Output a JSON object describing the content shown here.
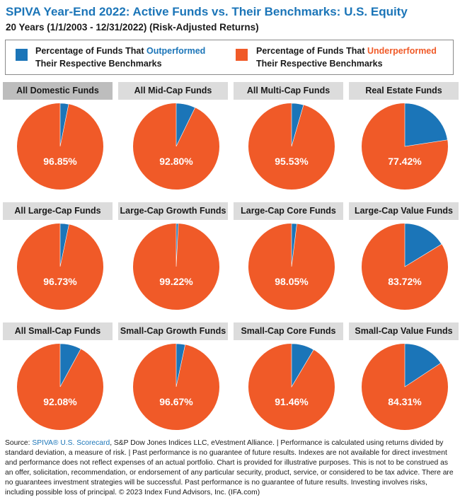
{
  "header": {
    "title": "SPIVA Year-End 2022: Active Funds vs. Their Benchmarks: U.S. Equity",
    "subtitle": "20 Years (1/1/2003 - 12/31/2022) (Risk-Adjusted Returns)"
  },
  "legend": {
    "outperformed_prefix": "Percentage of Funds That ",
    "outperformed_highlight": "Outperformed",
    "outperformed_suffix": "Their Respective Benchmarks",
    "underperformed_prefix": "Percentage of Funds That ",
    "underperformed_highlight": "Underperformed",
    "underperformed_suffix": "Their Respective Benchmarks"
  },
  "colors": {
    "outperformed": "#1b75b8",
    "underperformed": "#f05a28",
    "header_bg": "#dcdcdc",
    "header_selected_bg": "#bdbdbd"
  },
  "chart_data": [
    {
      "type": "pie",
      "title": "All Domestic Funds",
      "slices": [
        {
          "name": "Outperformed",
          "value": 3.15
        },
        {
          "name": "Underperformed",
          "value": 96.85
        }
      ],
      "label": "96.85%"
    },
    {
      "type": "pie",
      "title": "All Mid-Cap Funds",
      "slices": [
        {
          "name": "Outperformed",
          "value": 7.2
        },
        {
          "name": "Underperformed",
          "value": 92.8
        }
      ],
      "label": "92.80%"
    },
    {
      "type": "pie",
      "title": "All Multi-Cap Funds",
      "slices": [
        {
          "name": "Outperformed",
          "value": 4.47
        },
        {
          "name": "Underperformed",
          "value": 95.53
        }
      ],
      "label": "95.53%"
    },
    {
      "type": "pie",
      "title": "Real Estate Funds",
      "slices": [
        {
          "name": "Outperformed",
          "value": 22.58
        },
        {
          "name": "Underperformed",
          "value": 77.42
        }
      ],
      "label": "77.42%"
    },
    {
      "type": "pie",
      "title": "All Large-Cap Funds",
      "slices": [
        {
          "name": "Outperformed",
          "value": 3.27
        },
        {
          "name": "Underperformed",
          "value": 96.73
        }
      ],
      "label": "96.73%"
    },
    {
      "type": "pie",
      "title": "Large-Cap Growth Funds",
      "slices": [
        {
          "name": "Outperformed",
          "value": 0.78
        },
        {
          "name": "Underperformed",
          "value": 99.22
        }
      ],
      "label": "99.22%"
    },
    {
      "type": "pie",
      "title": "Large-Cap Core Funds",
      "slices": [
        {
          "name": "Outperformed",
          "value": 1.95
        },
        {
          "name": "Underperformed",
          "value": 98.05
        }
      ],
      "label": "98.05%"
    },
    {
      "type": "pie",
      "title": "Large-Cap Value Funds",
      "slices": [
        {
          "name": "Outperformed",
          "value": 16.28
        },
        {
          "name": "Underperformed",
          "value": 83.72
        }
      ],
      "label": "83.72%"
    },
    {
      "type": "pie",
      "title": "All Small-Cap Funds",
      "slices": [
        {
          "name": "Outperformed",
          "value": 7.92
        },
        {
          "name": "Underperformed",
          "value": 92.08
        }
      ],
      "label": "92.08%"
    },
    {
      "type": "pie",
      "title": "Small-Cap Growth Funds",
      "slices": [
        {
          "name": "Outperformed",
          "value": 3.33
        },
        {
          "name": "Underperformed",
          "value": 96.67
        }
      ],
      "label": "96.67%"
    },
    {
      "type": "pie",
      "title": "Small-Cap Core Funds",
      "slices": [
        {
          "name": "Outperformed",
          "value": 8.54
        },
        {
          "name": "Underperformed",
          "value": 91.46
        }
      ],
      "label": "91.46%"
    },
    {
      "type": "pie",
      "title": "Small-Cap Value Funds",
      "slices": [
        {
          "name": "Outperformed",
          "value": 15.69
        },
        {
          "name": "Underperformed",
          "value": 84.31
        }
      ],
      "label": "84.31%"
    }
  ],
  "footer": {
    "source_prefix": "Source: ",
    "source_link": "SPIVA® U.S. Scorecard",
    "body": ", S&P Dow Jones Indices LLC, eVestment Alliance. | Performance is calculated using returns divided by standard deviation, a measure of risk. | Past performance is no guarantee of future results. Indexes are not available for direct investment and performance does not reflect expenses of an actual portfolio. Chart is provided for illustrative purposes. This is not to be construed as an offer, solicitation, recommendation, or endorsement of any particular security, product, service, or considered to be tax advice. There are no guarantees investment strategies will be successful. Past performance is no guarantee of future results. Investing involves risks, including possible loss of principal. © 2023 Index Fund Advisors, Inc. (IFA.com)"
  }
}
